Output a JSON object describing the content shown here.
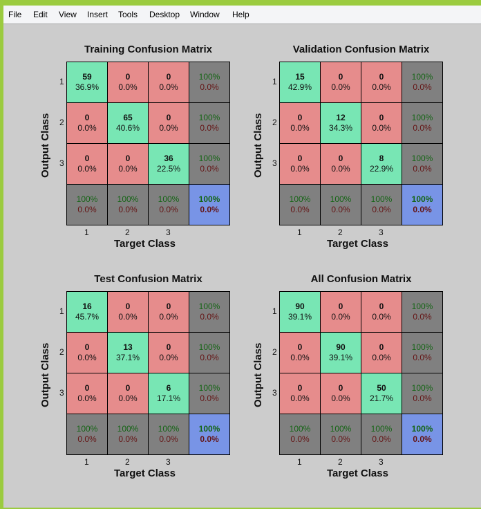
{
  "menu": {
    "items": [
      "File",
      "Edit",
      "View",
      "Insert",
      "Tools",
      "Desktop",
      "Window",
      "Help"
    ]
  },
  "colors": {
    "diagonal": "#78E6B4",
    "off_diagonal": "#E68C8C",
    "summary": "#808080",
    "total": "#7894E6",
    "correct_text": "#146414",
    "error_text": "#641414",
    "figure_bg": "#CCCCCC",
    "window_frame": "#9BCB3F"
  },
  "chart_data": [
    {
      "type": "heatmap",
      "title": "Training Confusion Matrix",
      "xlabel": "Target Class",
      "ylabel": "Output Class",
      "x_ticks": [
        "1",
        "2",
        "3"
      ],
      "y_ticks": [
        "1",
        "2",
        "3"
      ],
      "counts": [
        [
          59,
          0,
          0
        ],
        [
          0,
          65,
          0
        ],
        [
          0,
          0,
          36
        ]
      ],
      "percents": [
        [
          "36.9%",
          "0.0%",
          "0.0%"
        ],
        [
          "0.0%",
          "40.6%",
          "0.0%"
        ],
        [
          "0.0%",
          "0.0%",
          "22.5%"
        ]
      ],
      "row_summary": [
        [
          "100%",
          "0.0%"
        ],
        [
          "100%",
          "0.0%"
        ],
        [
          "100%",
          "0.0%"
        ]
      ],
      "col_summary": [
        [
          "100%",
          "0.0%"
        ],
        [
          "100%",
          "0.0%"
        ],
        [
          "100%",
          "0.0%"
        ]
      ],
      "overall": [
        "100%",
        "0.0%"
      ]
    },
    {
      "type": "heatmap",
      "title": "Validation Confusion Matrix",
      "xlabel": "Target Class",
      "ylabel": "Output Class",
      "x_ticks": [
        "1",
        "2",
        "3"
      ],
      "y_ticks": [
        "1",
        "2",
        "3"
      ],
      "counts": [
        [
          15,
          0,
          0
        ],
        [
          0,
          12,
          0
        ],
        [
          0,
          0,
          8
        ]
      ],
      "percents": [
        [
          "42.9%",
          "0.0%",
          "0.0%"
        ],
        [
          "0.0%",
          "34.3%",
          "0.0%"
        ],
        [
          "0.0%",
          "0.0%",
          "22.9%"
        ]
      ],
      "row_summary": [
        [
          "100%",
          "0.0%"
        ],
        [
          "100%",
          "0.0%"
        ],
        [
          "100%",
          "0.0%"
        ]
      ],
      "col_summary": [
        [
          "100%",
          "0.0%"
        ],
        [
          "100%",
          "0.0%"
        ],
        [
          "100%",
          "0.0%"
        ]
      ],
      "overall": [
        "100%",
        "0.0%"
      ]
    },
    {
      "type": "heatmap",
      "title": "Test Confusion Matrix",
      "xlabel": "Target Class",
      "ylabel": "Output Class",
      "x_ticks": [
        "1",
        "2",
        "3"
      ],
      "y_ticks": [
        "1",
        "2",
        "3"
      ],
      "counts": [
        [
          16,
          0,
          0
        ],
        [
          0,
          13,
          0
        ],
        [
          0,
          0,
          6
        ]
      ],
      "percents": [
        [
          "45.7%",
          "0.0%",
          "0.0%"
        ],
        [
          "0.0%",
          "37.1%",
          "0.0%"
        ],
        [
          "0.0%",
          "0.0%",
          "17.1%"
        ]
      ],
      "row_summary": [
        [
          "100%",
          "0.0%"
        ],
        [
          "100%",
          "0.0%"
        ],
        [
          "100%",
          "0.0%"
        ]
      ],
      "col_summary": [
        [
          "100%",
          "0.0%"
        ],
        [
          "100%",
          "0.0%"
        ],
        [
          "100%",
          "0.0%"
        ]
      ],
      "overall": [
        "100%",
        "0.0%"
      ]
    },
    {
      "type": "heatmap",
      "title": "All Confusion Matrix",
      "xlabel": "Target Class",
      "ylabel": "Output Class",
      "x_ticks": [
        "1",
        "2",
        "3"
      ],
      "y_ticks": [
        "1",
        "2",
        "3"
      ],
      "counts": [
        [
          90,
          0,
          0
        ],
        [
          0,
          90,
          0
        ],
        [
          0,
          0,
          50
        ]
      ],
      "percents": [
        [
          "39.1%",
          "0.0%",
          "0.0%"
        ],
        [
          "0.0%",
          "39.1%",
          "0.0%"
        ],
        [
          "0.0%",
          "0.0%",
          "21.7%"
        ]
      ],
      "row_summary": [
        [
          "100%",
          "0.0%"
        ],
        [
          "100%",
          "0.0%"
        ],
        [
          "100%",
          "0.0%"
        ]
      ],
      "col_summary": [
        [
          "100%",
          "0.0%"
        ],
        [
          "100%",
          "0.0%"
        ],
        [
          "100%",
          "0.0%"
        ]
      ],
      "overall": [
        "100%",
        "0.0%"
      ]
    }
  ]
}
